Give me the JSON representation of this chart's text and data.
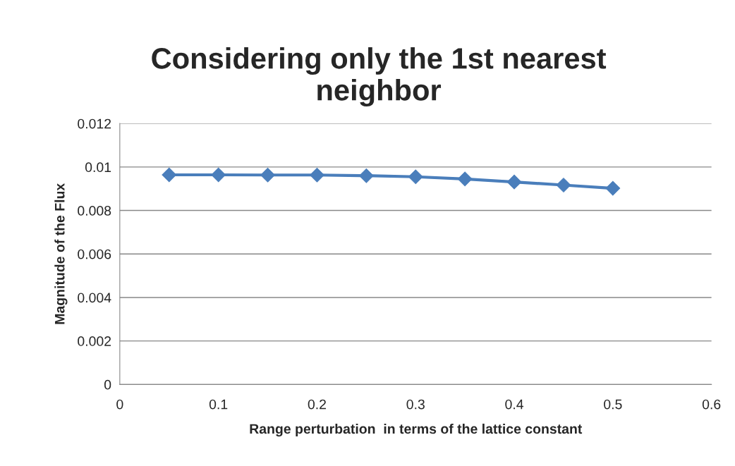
{
  "chart_data": {
    "type": "line",
    "title": "Considering only the 1st nearest neighbor",
    "xlabel": "Range perturbation  in terms of the lattice constant",
    "ylabel": "Magnitude of the Flux",
    "x": [
      0.05,
      0.1,
      0.15,
      0.2,
      0.25,
      0.3,
      0.35,
      0.4,
      0.45,
      0.5
    ],
    "series": [
      {
        "color": "#4a7ebb",
        "values": [
          0.00964,
          0.00964,
          0.00963,
          0.00963,
          0.0096,
          0.00955,
          0.00945,
          0.00931,
          0.00917,
          0.00902
        ]
      }
    ],
    "xlim": [
      0,
      0.6
    ],
    "xticks": [
      0,
      0.1,
      0.2,
      0.3,
      0.4,
      0.5,
      0.6
    ],
    "ylim": [
      0,
      0.012
    ],
    "yticks": [
      0,
      0.002,
      0.004,
      0.006,
      0.008,
      0.01,
      0.012
    ],
    "grid": "y",
    "marker": "diamond",
    "line_style": "solid"
  }
}
